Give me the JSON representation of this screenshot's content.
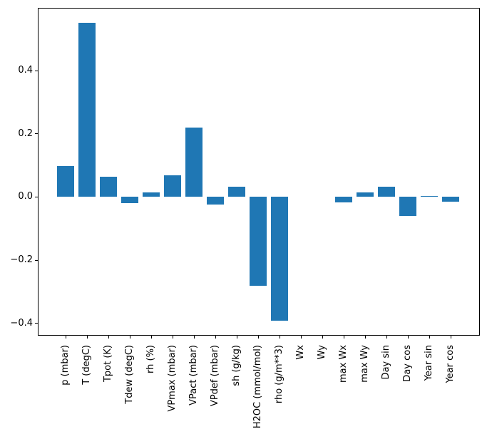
{
  "chart_data": {
    "type": "bar",
    "title": "",
    "xlabel": "",
    "ylabel": "",
    "categories": [
      "p (mbar)",
      "T (degC)",
      "Tpot (K)",
      "Tdew (degC)",
      "rh (%)",
      "VPmax (mbar)",
      "VPact (mbar)",
      "VPdef (mbar)",
      "sh (g/kg)",
      "H2OC (mmol/mol)",
      "rho (g/m**3)",
      "Wx",
      "Wy",
      "max Wx",
      "max Wy",
      "Day sin",
      "Day cos",
      "Year sin",
      "Year cos"
    ],
    "values": [
      0.099,
      0.552,
      0.064,
      -0.019,
      0.015,
      0.068,
      0.219,
      -0.024,
      0.032,
      -0.281,
      -0.392,
      0.0,
      0.0,
      -0.018,
      0.015,
      0.032,
      -0.061,
      0.003,
      -0.015
    ],
    "ylim": [
      -0.439,
      0.599
    ],
    "yticks": {
      "values": [
        0.4,
        0.2,
        0.0,
        -0.2,
        -0.4
      ],
      "labels": [
        "0.4",
        "0.2",
        "0.0",
        "−0.2",
        "−0.4"
      ]
    },
    "x_tick_rotation_deg": 90,
    "grid": false,
    "legend": "none",
    "bar_color": "#1f77b4",
    "axis_color": "#000000",
    "background_color": "#ffffff"
  }
}
